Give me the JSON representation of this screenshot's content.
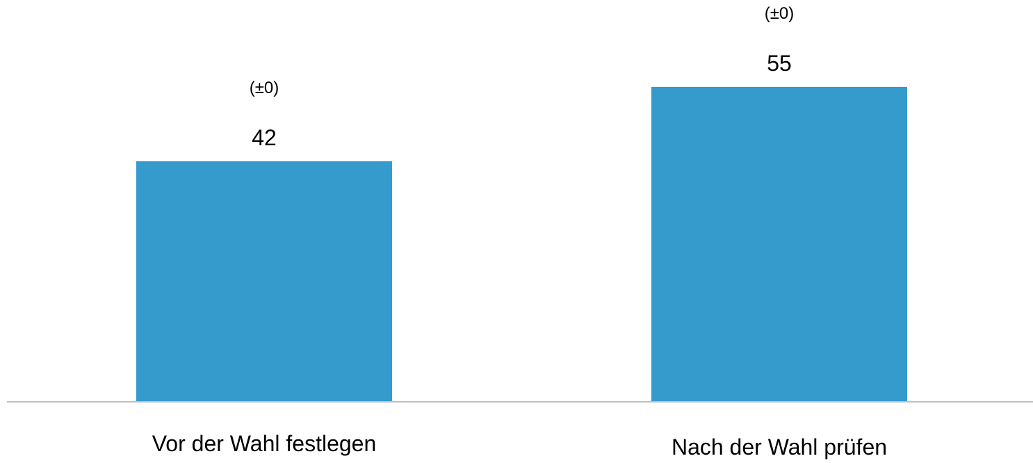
{
  "chart_data": {
    "type": "bar",
    "categories": [
      "Vor der Wahl festlegen",
      "Nach der Wahl prüfen"
    ],
    "values": [
      42,
      55
    ],
    "value_labels": [
      "42",
      "55"
    ],
    "change_labels": [
      "(±0)",
      "(±0)"
    ],
    "title": "",
    "xlabel": "",
    "ylabel": "",
    "ylim": [
      0,
      60
    ],
    "grid": false,
    "legend": "none",
    "colors": {
      "bar": "#359bcc",
      "baseline": "#bfbfbf"
    }
  }
}
